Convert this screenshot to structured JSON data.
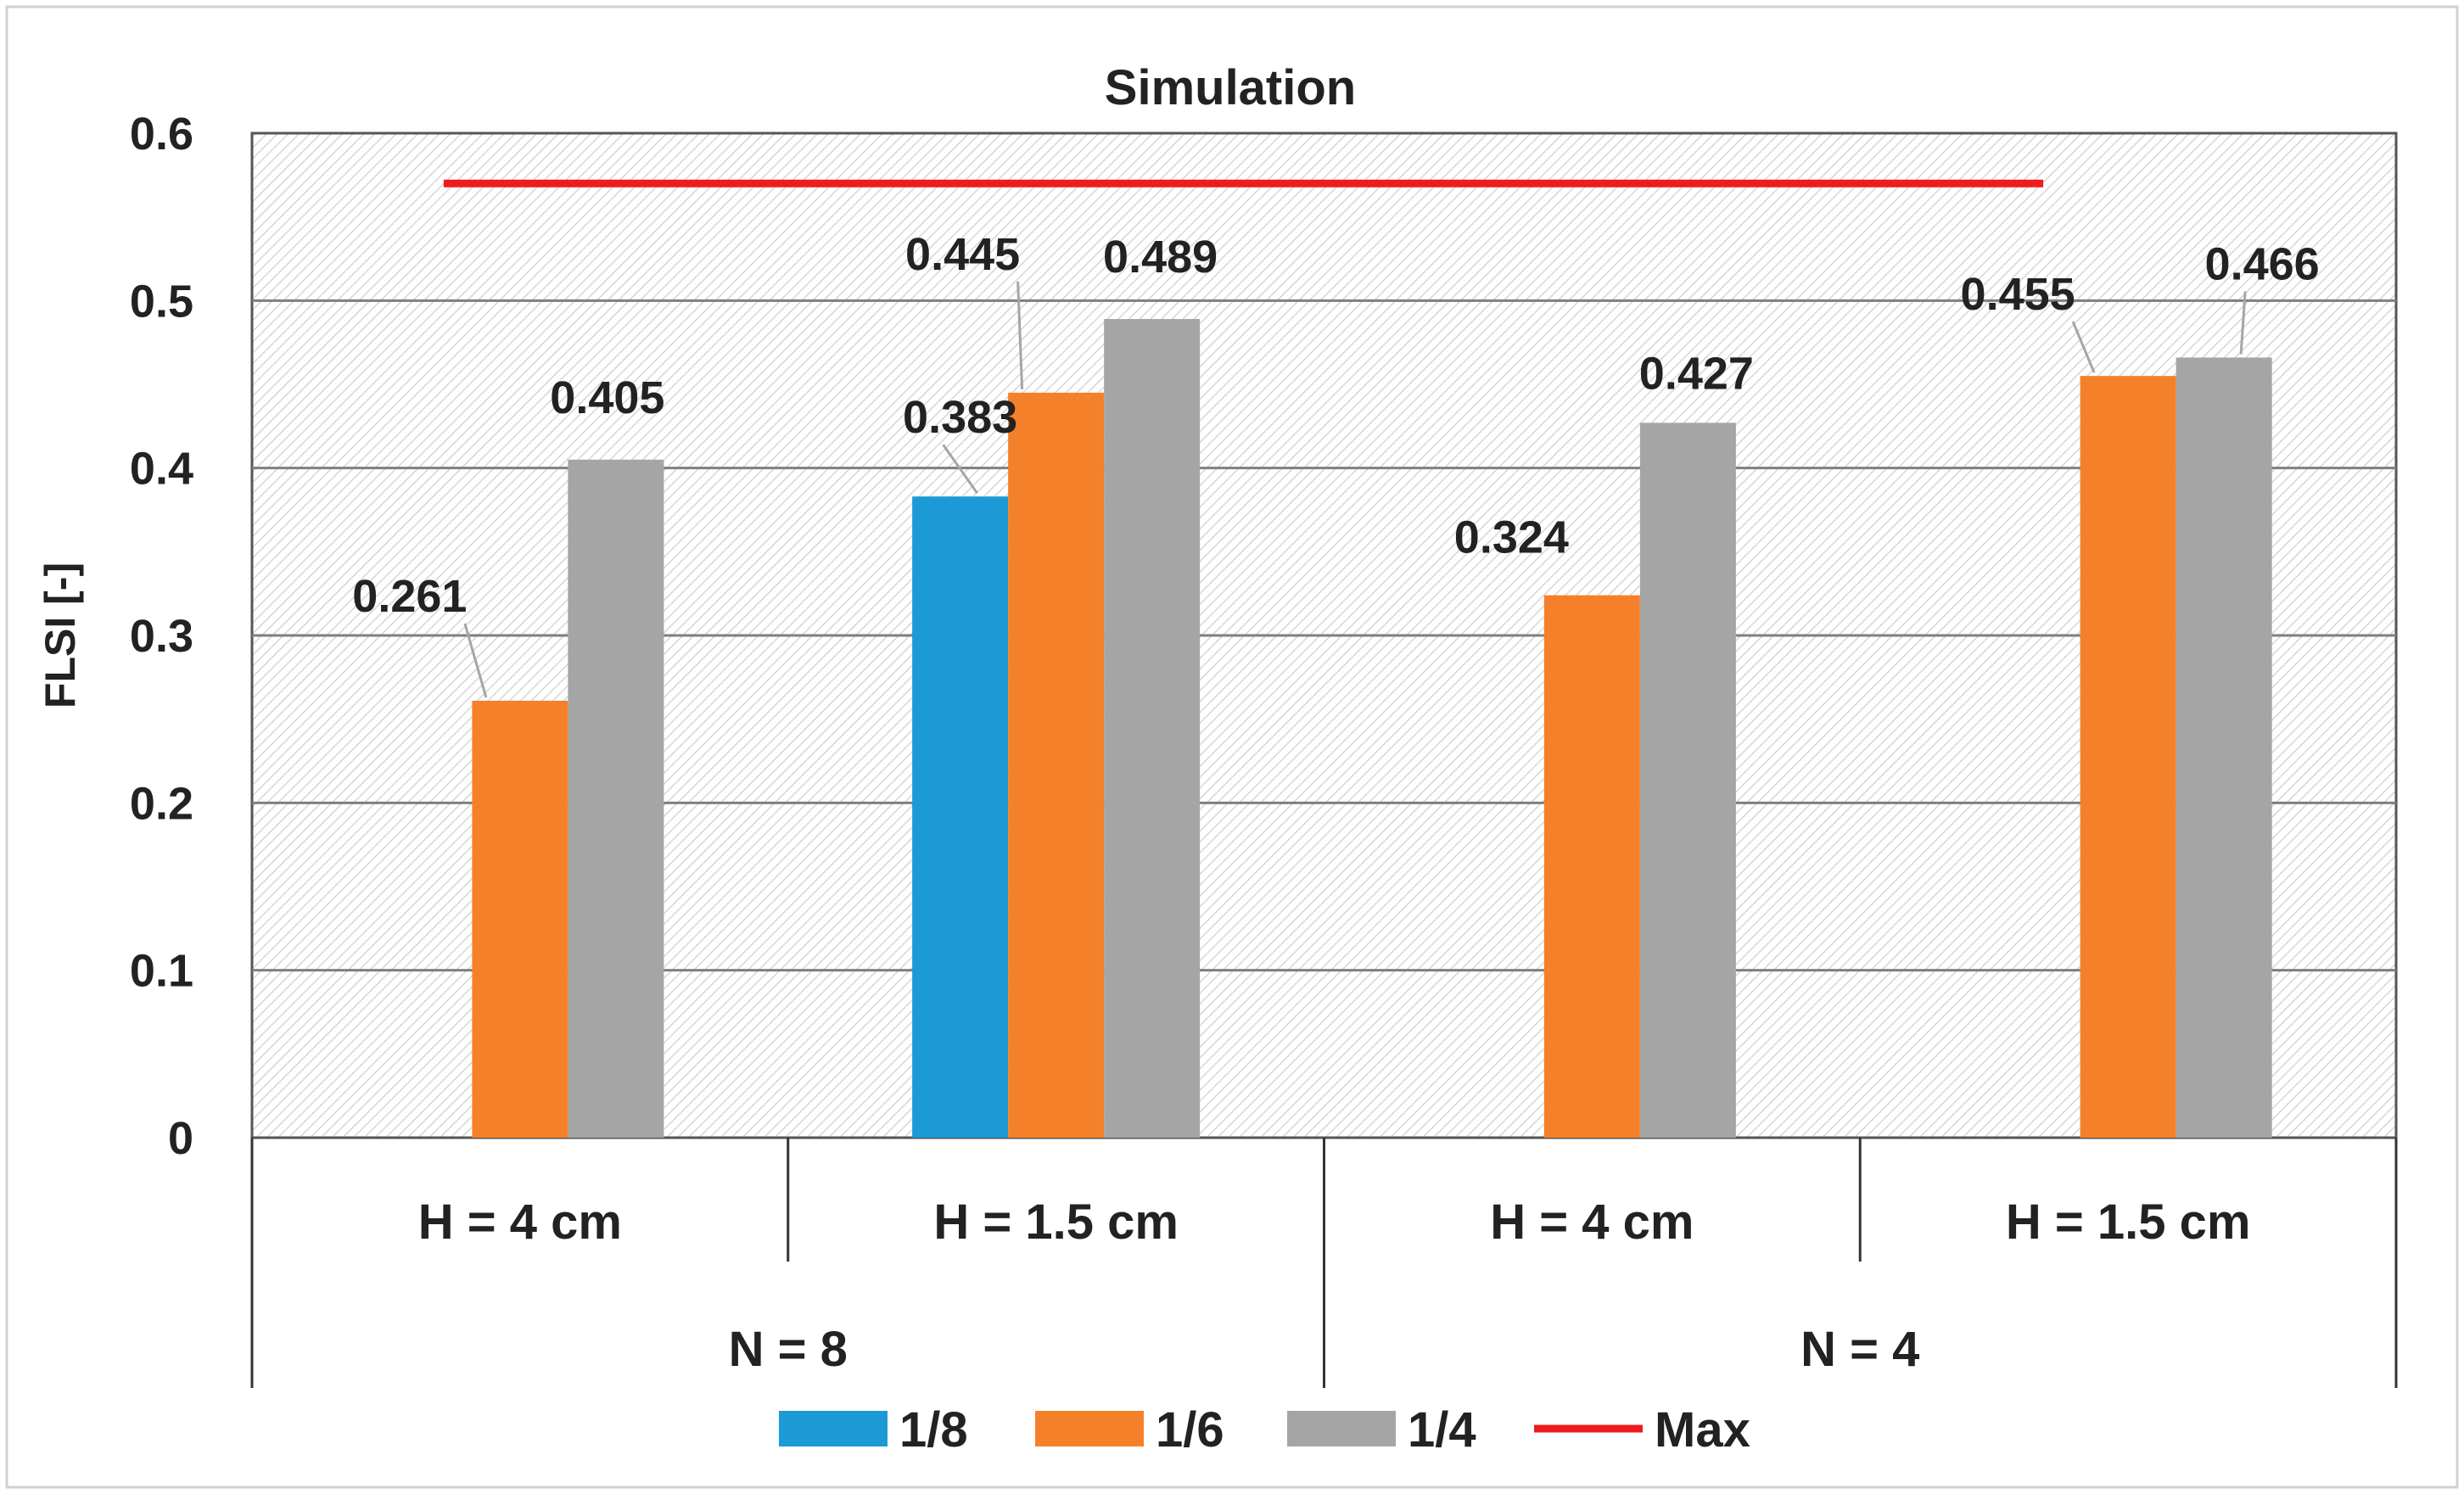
{
  "chart_data": {
    "type": "bar",
    "title": "Simulation",
    "ylabel": "FLSI [-]",
    "xlabel": "",
    "ylim": [
      0,
      0.6
    ],
    "yticks": [
      "0",
      "0.1",
      "0.2",
      "0.3",
      "0.4",
      "0.5",
      "0.6"
    ],
    "ytick_values": [
      0,
      0.1,
      0.2,
      0.3,
      0.4,
      0.5,
      0.6
    ],
    "categories": [
      "H = 4 cm",
      "H = 1.5 cm",
      "H = 4 cm",
      "H = 1.5 cm"
    ],
    "groups": [
      {
        "label": "N = 8",
        "span": [
          0,
          1
        ]
      },
      {
        "label": "N = 4",
        "span": [
          2,
          3
        ]
      }
    ],
    "series": [
      {
        "name": "1/8",
        "color": "#1b9ad6",
        "values": [
          null,
          0.383,
          null,
          null
        ],
        "labels": [
          "",
          "0.383",
          "",
          ""
        ]
      },
      {
        "name": "1/6",
        "color": "#f4812a",
        "values": [
          0.261,
          0.445,
          0.324,
          0.455
        ],
        "labels": [
          "0.261",
          "0.445",
          "0.324",
          "0.455"
        ]
      },
      {
        "name": "1/4",
        "color": "#a5a5a5",
        "values": [
          0.405,
          0.489,
          0.427,
          0.466
        ],
        "labels": [
          "0.405",
          "0.489",
          "0.427",
          "0.466"
        ]
      }
    ],
    "max_line": {
      "name": "Max",
      "color": "#ee1c1c",
      "value": 0.57
    },
    "legend": [
      "1/8",
      "1/6",
      "1/4",
      "Max"
    ],
    "legend_position": "bottom",
    "grid": true
  }
}
